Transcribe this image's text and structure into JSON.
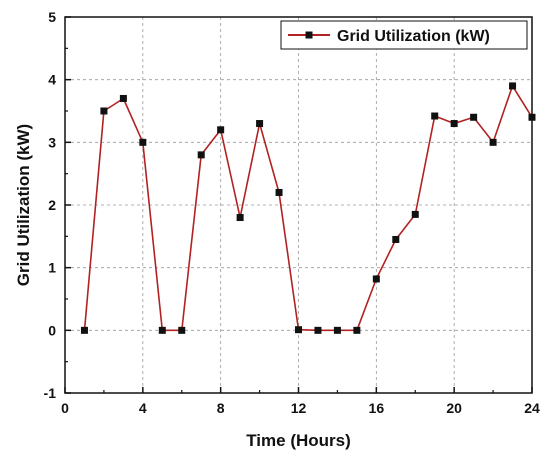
{
  "chart_data": {
    "type": "line",
    "title": "",
    "xlabel": "Time (Hours)",
    "ylabel": "Grid Utilization (kW)",
    "xlim": [
      0,
      24
    ],
    "ylim": [
      -1,
      5
    ],
    "xticks": [
      0,
      4,
      8,
      12,
      16,
      20,
      24
    ],
    "yticks": [
      -1,
      0,
      1,
      2,
      3,
      4,
      5
    ],
    "grid": true,
    "legend_position": "top-right",
    "series": [
      {
        "name": "Grid Utilization (kW)",
        "color": "#b22222",
        "marker_color": "#111111",
        "marker": "square",
        "x": [
          1,
          2,
          3,
          4,
          5,
          6,
          7,
          8,
          9,
          10,
          11,
          12,
          13,
          14,
          15,
          16,
          17,
          18,
          19,
          20,
          21,
          22,
          23,
          24
        ],
        "y": [
          0,
          3.5,
          3.7,
          3.0,
          0,
          0,
          2.8,
          3.2,
          1.8,
          3.3,
          2.2,
          0.01,
          0,
          0,
          0,
          0.82,
          1.45,
          1.85,
          3.42,
          3.3,
          3.4,
          3.0,
          3.9,
          3.4
        ]
      }
    ]
  }
}
